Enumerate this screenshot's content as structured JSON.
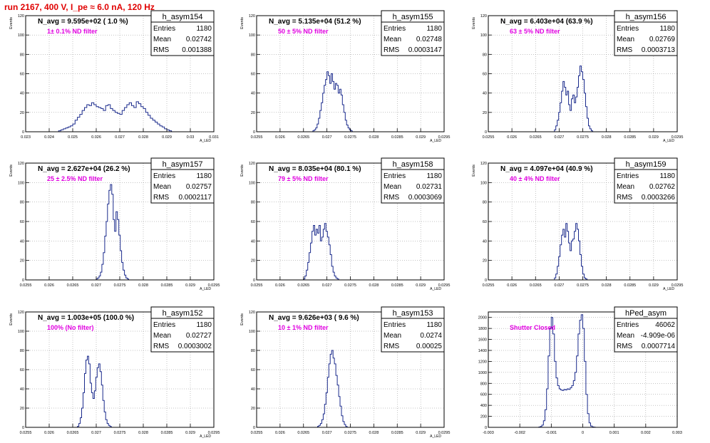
{
  "page": {
    "title": "run 2167,   400 V, I_pe ≈ 6.0 nA, 120 Hz"
  },
  "colors": {
    "histogram": "#1a2a8c",
    "annotation": "#e000e0",
    "title": "#e00000",
    "grid": "#888888",
    "axis": "#000000"
  },
  "stat_labels": {
    "entries": "Entries",
    "mean": "Mean",
    "rms": "RMS"
  },
  "chart_data": [
    {
      "type": "bar",
      "name": "h_asym154",
      "title": "N_avg = 9.595e+02 ( 1.0 %)",
      "annotation": "1± 0.1% ND filter",
      "xlabel": "A_LED",
      "ylabel": "Events",
      "xlim": [
        0.023,
        0.031
      ],
      "ylim": [
        0,
        120
      ],
      "xticks": [
        0.023,
        0.024,
        0.025,
        0.026,
        0.027,
        0.028,
        0.029,
        0.03,
        0.031
      ],
      "xtick_labels": [
        "0.023",
        "0.024",
        "0.025",
        "0.026",
        "0.027",
        "0.028",
        "0.029",
        "0.03",
        "0.031"
      ],
      "yticks": [
        0,
        20,
        40,
        60,
        80,
        100,
        120
      ],
      "ytick_labels": [
        "0",
        "20",
        "40",
        "60",
        "80",
        "100",
        "120"
      ],
      "stats": {
        "entries": "1180",
        "mean": "0.02742",
        "rms": "0.001388"
      },
      "bin_start": 0.0244,
      "bin_width": 0.0001,
      "values": [
        1,
        2,
        3,
        4,
        5,
        6,
        8,
        12,
        15,
        18,
        22,
        25,
        28,
        27,
        30,
        28,
        26,
        25,
        24,
        22,
        27,
        28,
        24,
        22,
        20,
        19,
        18,
        22,
        25,
        28,
        30,
        27,
        25,
        31,
        29,
        26,
        24,
        20,
        17,
        14,
        12,
        10,
        8,
        6,
        5,
        3,
        2,
        1
      ]
    },
    {
      "type": "bar",
      "name": "h_asym155",
      "title": "N_avg = 5.135e+04 (51.2 %)",
      "annotation": "50 ± 5% ND filter",
      "xlabel": "A_LED",
      "ylabel": "Events",
      "xlim": [
        0.0255,
        0.0295
      ],
      "ylim": [
        0,
        120
      ],
      "xticks": [
        0.0255,
        0.026,
        0.0265,
        0.027,
        0.0275,
        0.028,
        0.0285,
        0.029,
        0.0295
      ],
      "xtick_labels": [
        "0.0255",
        "0.026",
        "0.0265",
        "0.027",
        "0.0275",
        "0.028",
        "0.0285",
        "0.029",
        "0.0295"
      ],
      "yticks": [
        0,
        20,
        40,
        60,
        80,
        100,
        120
      ],
      "ytick_labels": [
        "0",
        "20",
        "40",
        "60",
        "80",
        "100",
        "120"
      ],
      "stats": {
        "entries": "1180",
        "mean": "0.02748",
        "rms": "0.0003147"
      },
      "bin_start": 0.0267,
      "bin_width": 3e-05,
      "values": [
        1,
        2,
        4,
        8,
        14,
        22,
        30,
        40,
        48,
        54,
        62,
        58,
        50,
        60,
        52,
        44,
        50,
        48,
        40,
        44,
        38,
        28,
        20,
        12,
        7,
        4,
        2,
        1
      ]
    },
    {
      "type": "bar",
      "name": "h_asym156",
      "title": "N_avg = 6.403e+04 (63.9 %)",
      "annotation": "63 ± 5% ND filter",
      "xlabel": "A_LED",
      "ylabel": "Events",
      "xlim": [
        0.0255,
        0.0295
      ],
      "ylim": [
        0,
        120
      ],
      "xticks": [
        0.0255,
        0.026,
        0.0265,
        0.027,
        0.0275,
        0.028,
        0.0285,
        0.029,
        0.0295
      ],
      "xtick_labels": [
        "0.0255",
        "0.026",
        "0.0265",
        "0.027",
        "0.0275",
        "0.028",
        "0.0285",
        "0.029",
        "0.0295"
      ],
      "yticks": [
        0,
        20,
        40,
        60,
        80,
        100,
        120
      ],
      "ytick_labels": [
        "0",
        "20",
        "40",
        "60",
        "80",
        "100",
        "120"
      ],
      "stats": {
        "entries": "1180",
        "mean": "0.02769",
        "rms": "0.0003713"
      },
      "bin_start": 0.0269,
      "bin_width": 3e-05,
      "values": [
        2,
        6,
        12,
        20,
        30,
        42,
        52,
        46,
        38,
        42,
        28,
        22,
        34,
        38,
        30,
        36,
        46,
        58,
        68,
        62,
        54,
        40,
        26,
        14,
        6,
        3,
        1
      ]
    },
    {
      "type": "bar",
      "name": "h_asym157",
      "title": "N_avg = 2.627e+04 (26.2 %)",
      "annotation": "25 ± 2.5% ND filter",
      "xlabel": "A_LED",
      "ylabel": "Events",
      "xlim": [
        0.0255,
        0.0295
      ],
      "ylim": [
        0,
        120
      ],
      "xticks": [
        0.0255,
        0.026,
        0.0265,
        0.027,
        0.0275,
        0.028,
        0.0285,
        0.029,
        0.0295
      ],
      "xtick_labels": [
        "0.0255",
        "0.026",
        "0.0265",
        "0.027",
        "0.0275",
        "0.028",
        "0.0285",
        "0.029",
        "0.0295"
      ],
      "yticks": [
        0,
        20,
        40,
        60,
        80,
        100,
        120
      ],
      "ytick_labels": [
        "0",
        "20",
        "40",
        "60",
        "80",
        "100",
        "120"
      ],
      "stats": {
        "entries": "1180",
        "mean": "0.02757",
        "rms": "0.0002117"
      },
      "bin_start": 0.027,
      "bin_width": 3e-05,
      "values": [
        1,
        2,
        4,
        8,
        16,
        28,
        45,
        60,
        78,
        92,
        98,
        88,
        62,
        50,
        70,
        62,
        46,
        30,
        18,
        10,
        5,
        2,
        1
      ]
    },
    {
      "type": "bar",
      "name": "h_asym158",
      "title": "N_avg = 8.035e+04 (80.1 %)",
      "annotation": "79 ± 5% ND filter",
      "xlabel": "A_LED",
      "ylabel": "Events",
      "xlim": [
        0.0255,
        0.0295
      ],
      "ylim": [
        0,
        120
      ],
      "xticks": [
        0.0255,
        0.026,
        0.0265,
        0.027,
        0.0275,
        0.028,
        0.0285,
        0.029,
        0.0295
      ],
      "xtick_labels": [
        "0.0255",
        "0.026",
        "0.0265",
        "0.027",
        "0.0275",
        "0.028",
        "0.0285",
        "0.029",
        "0.0295"
      ],
      "yticks": [
        0,
        20,
        40,
        60,
        80,
        100,
        120
      ],
      "ytick_labels": [
        "0",
        "20",
        "40",
        "60",
        "80",
        "100",
        "120"
      ],
      "stats": {
        "entries": "1180",
        "mean": "0.02731",
        "rms": "0.0003069"
      },
      "bin_start": 0.0265,
      "bin_width": 3e-05,
      "values": [
        1,
        4,
        10,
        18,
        28,
        38,
        50,
        56,
        46,
        52,
        48,
        56,
        40,
        44,
        52,
        58,
        50,
        44,
        36,
        26,
        14,
        8,
        4,
        2,
        1
      ]
    },
    {
      "type": "bar",
      "name": "h_asym159",
      "title": "N_avg = 4.097e+04 (40.9 %)",
      "annotation": "40 ± 4% ND filter",
      "xlabel": "A_LED",
      "ylabel": "Events",
      "xlim": [
        0.0255,
        0.0295
      ],
      "ylim": [
        0,
        120
      ],
      "xticks": [
        0.0255,
        0.026,
        0.0265,
        0.027,
        0.0275,
        0.028,
        0.0285,
        0.029,
        0.0295
      ],
      "xtick_labels": [
        "0.0255",
        "0.026",
        "0.0265",
        "0.027",
        "0.0275",
        "0.028",
        "0.0285",
        "0.029",
        "0.0295"
      ],
      "yticks": [
        0,
        20,
        40,
        60,
        80,
        100,
        120
      ],
      "ytick_labels": [
        "0",
        "20",
        "40",
        "60",
        "80",
        "100",
        "120"
      ],
      "stats": {
        "entries": "1180",
        "mean": "0.02762",
        "rms": "0.0003266"
      },
      "bin_start": 0.0269,
      "bin_width": 3e-05,
      "values": [
        2,
        6,
        14,
        24,
        36,
        46,
        52,
        44,
        58,
        50,
        38,
        30,
        40,
        42,
        50,
        58,
        52,
        40,
        26,
        14,
        6,
        2,
        1
      ]
    },
    {
      "type": "bar",
      "name": "h_asym152",
      "title": "N_avg = 1.003e+05 (100.0 %)",
      "annotation": "100% (No filter)",
      "xlabel": "A_LED",
      "ylabel": "Events",
      "xlim": [
        0.0255,
        0.0295
      ],
      "ylim": [
        0,
        120
      ],
      "xticks": [
        0.0255,
        0.026,
        0.0265,
        0.027,
        0.0275,
        0.028,
        0.0285,
        0.029,
        0.0295
      ],
      "xtick_labels": [
        "0.0255",
        "0.026",
        "0.0265",
        "0.027",
        "0.0275",
        "0.028",
        "0.0285",
        "0.029",
        "0.0295"
      ],
      "yticks": [
        0,
        20,
        40,
        60,
        80,
        100,
        120
      ],
      "ytick_labels": [
        "0",
        "20",
        "40",
        "60",
        "80",
        "100",
        "120"
      ],
      "stats": {
        "entries": "1180",
        "mean": "0.02727",
        "rms": "0.0003002"
      },
      "bin_start": 0.0266,
      "bin_width": 3e-05,
      "values": [
        1,
        4,
        10,
        20,
        36,
        56,
        70,
        74,
        66,
        46,
        36,
        30,
        38,
        52,
        62,
        66,
        58,
        44,
        28,
        16,
        8,
        4,
        2,
        1
      ]
    },
    {
      "type": "bar",
      "name": "h_asym153",
      "title": "N_avg = 9.626e+03 ( 9.6 %)",
      "annotation": "10 ± 1% ND filter",
      "xlabel": "A_LED",
      "ylabel": "Events",
      "xlim": [
        0.0255,
        0.0295
      ],
      "ylim": [
        0,
        120
      ],
      "xticks": [
        0.0255,
        0.026,
        0.0265,
        0.027,
        0.0275,
        0.028,
        0.0285,
        0.029,
        0.0295
      ],
      "xtick_labels": [
        "0.0255",
        "0.026",
        "0.0265",
        "0.027",
        "0.0275",
        "0.028",
        "0.0285",
        "0.029",
        "0.0295"
      ],
      "yticks": [
        0,
        20,
        40,
        60,
        80,
        100,
        120
      ],
      "ytick_labels": [
        "0",
        "20",
        "40",
        "60",
        "80",
        "100",
        "120"
      ],
      "stats": {
        "entries": "1180",
        "mean": "0.0274",
        "rms": "0.00025"
      },
      "bin_start": 0.0268,
      "bin_width": 3e-05,
      "values": [
        1,
        2,
        4,
        8,
        14,
        24,
        36,
        52,
        66,
        76,
        80,
        72,
        66,
        54,
        44,
        32,
        22,
        12,
        6,
        3,
        1
      ]
    },
    {
      "type": "bar",
      "name": "hPed_asym",
      "title": "",
      "annotation": "Shutter Closed",
      "xlabel": "",
      "ylabel": "",
      "xlim": [
        -0.003,
        0.003
      ],
      "ylim": [
        0,
        2100
      ],
      "xticks": [
        -0.003,
        -0.002,
        -0.001,
        0,
        0.001,
        0.002,
        0.003
      ],
      "xtick_labels": [
        "-0.003",
        "-0.002",
        "-0.001",
        "0",
        "0.001",
        "0.002",
        "0.003"
      ],
      "yticks": [
        0,
        200,
        400,
        600,
        800,
        1000,
        1200,
        1400,
        1600,
        1800,
        2000
      ],
      "ytick_labels": [
        "0",
        "200",
        "400",
        "600",
        "800",
        "1000",
        "1200",
        "1400",
        "1600",
        "1800",
        "2000"
      ],
      "stats": {
        "entries": "46062",
        "mean": "-4.909e-06",
        "rms": "0.0007714"
      },
      "bin_start": -0.0014,
      "bin_width": 5e-05,
      "values": [
        5,
        15,
        40,
        120,
        320,
        700,
        1300,
        1800,
        2000,
        1700,
        1200,
        900,
        760,
        700,
        680,
        670,
        690,
        680,
        700,
        690,
        720,
        760,
        850,
        1000,
        1300,
        1700,
        1950,
        2050,
        1800,
        1200,
        600,
        250,
        80,
        25,
        8,
        2
      ]
    }
  ]
}
